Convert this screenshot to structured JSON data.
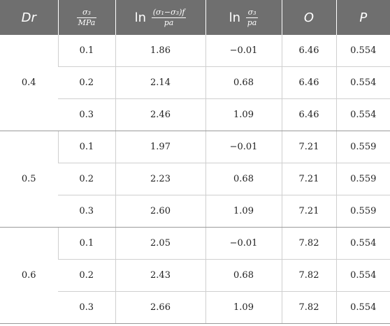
{
  "header": {
    "dr": "Dr",
    "sigma3_num": "σ₃",
    "sigma3_den": "MPa",
    "ln_prefix": "ln",
    "col3_num": "(σ₁−σ₃)f",
    "col3_den": "pa",
    "col4_num": "σ₃",
    "col4_den": "pa",
    "o": "O",
    "p": "P"
  },
  "groups": [
    {
      "dr": "0.4",
      "rows": [
        {
          "sigma3": "0.1",
          "ln_dev": "1.86",
          "ln_sig": "−0.01",
          "o": "6.46",
          "p": "0.554"
        },
        {
          "sigma3": "0.2",
          "ln_dev": "2.14",
          "ln_sig": "0.68",
          "o": "6.46",
          "p": "0.554"
        },
        {
          "sigma3": "0.3",
          "ln_dev": "2.46",
          "ln_sig": "1.09",
          "o": "6.46",
          "p": "0.554"
        }
      ]
    },
    {
      "dr": "0.5",
      "rows": [
        {
          "sigma3": "0.1",
          "ln_dev": "1.97",
          "ln_sig": "−0.01",
          "o": "7.21",
          "p": "0.559"
        },
        {
          "sigma3": "0.2",
          "ln_dev": "2.23",
          "ln_sig": "0.68",
          "o": "7.21",
          "p": "0.559"
        },
        {
          "sigma3": "0.3",
          "ln_dev": "2.60",
          "ln_sig": "1.09",
          "o": "7.21",
          "p": "0.559"
        }
      ]
    },
    {
      "dr": "0.6",
      "rows": [
        {
          "sigma3": "0.1",
          "ln_dev": "2.05",
          "ln_sig": "−0.01",
          "o": "7.82",
          "p": "0.554"
        },
        {
          "sigma3": "0.2",
          "ln_dev": "2.43",
          "ln_sig": "0.68",
          "o": "7.82",
          "p": "0.554"
        },
        {
          "sigma3": "0.3",
          "ln_dev": "2.66",
          "ln_sig": "1.09",
          "o": "7.82",
          "p": "0.554"
        }
      ]
    }
  ]
}
